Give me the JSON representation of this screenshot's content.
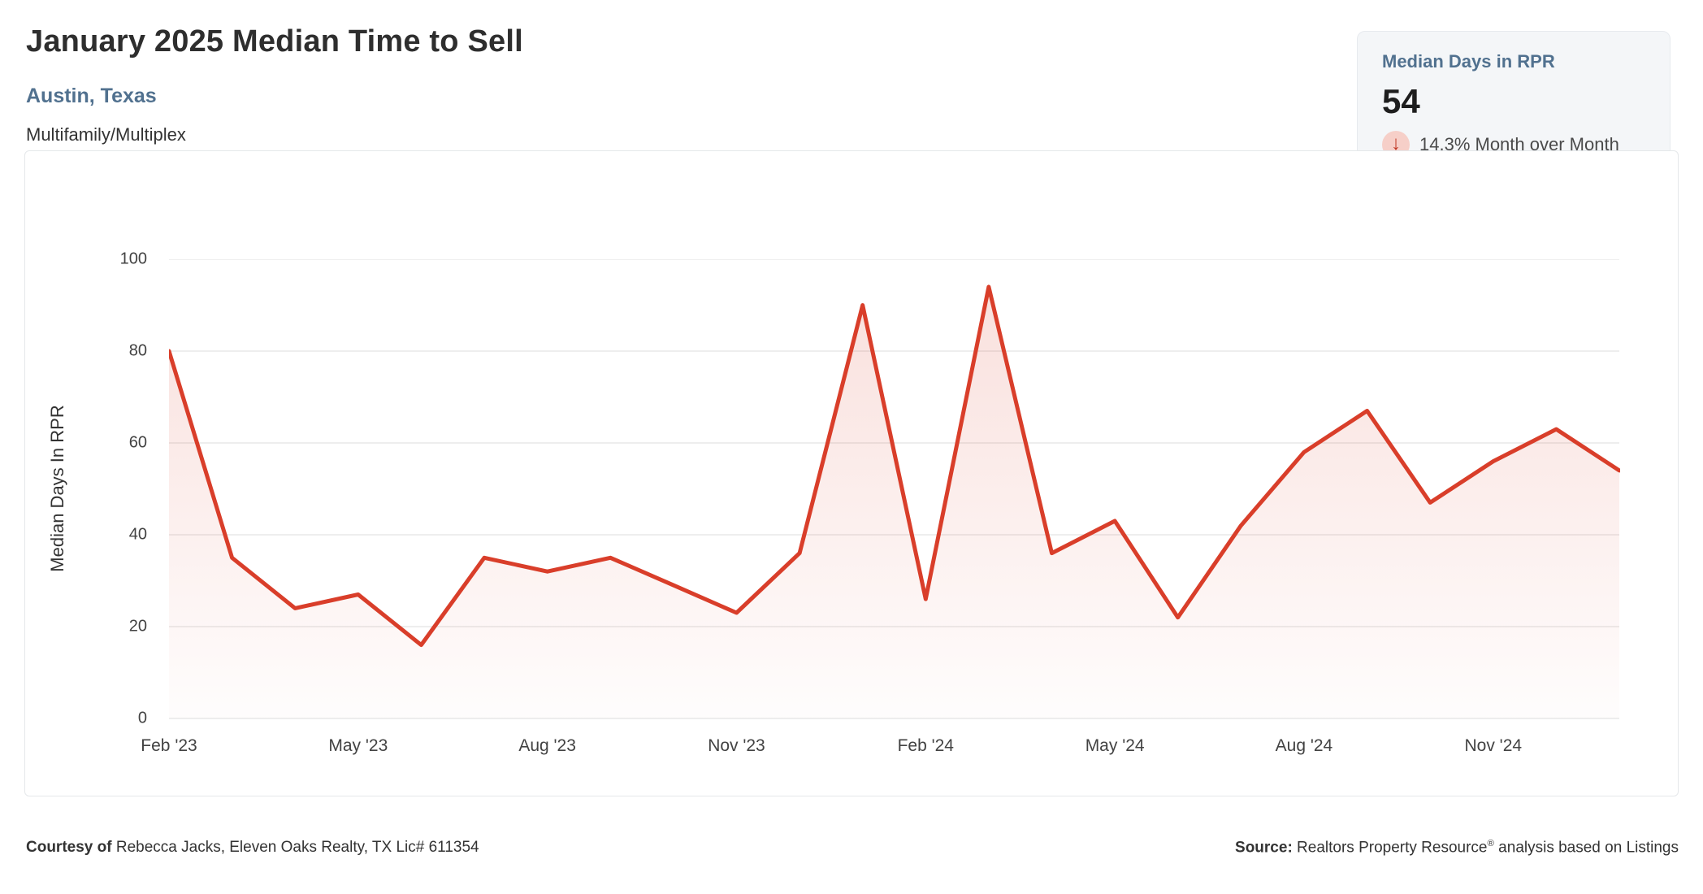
{
  "header": {
    "title": "January 2025 Median Time to Sell",
    "subtitle": "Austin, Texas",
    "property_type": "Multifamily/Multiplex"
  },
  "stat_card": {
    "label": "Median Days in RPR",
    "value": "54",
    "change_direction": "down",
    "arrow_icon": "↓",
    "change_text": "14.3% Month over Month"
  },
  "chart_data": {
    "type": "area",
    "title": "",
    "xlabel": "",
    "ylabel": "Median Days In RPR",
    "ylim": [
      0,
      100
    ],
    "yticks": [
      0,
      20,
      40,
      60,
      80,
      100
    ],
    "grid": true,
    "legend": "none",
    "x": [
      "Feb '23",
      "Mar '23",
      "Apr '23",
      "May '23",
      "Jun '23",
      "Jul '23",
      "Aug '23",
      "Sep '23",
      "Oct '23",
      "Nov '23",
      "Dec '23",
      "Jan '24",
      "Feb '24",
      "Mar '24",
      "Apr '24",
      "May '24",
      "Jun '24",
      "Jul '24",
      "Aug '24",
      "Sep '24",
      "Oct '24",
      "Nov '24",
      "Dec '24",
      "Jan '25"
    ],
    "xtick_every": 3,
    "xtick_labels": [
      "Feb '23",
      "May '23",
      "Aug '23",
      "Nov '23",
      "Feb '24",
      "May '24",
      "Aug '24",
      "Nov '24"
    ],
    "series": [
      {
        "name": "Median Days In RPR",
        "values": [
          80,
          35,
          24,
          27,
          16,
          35,
          32,
          35,
          29,
          23,
          36,
          90,
          26,
          94,
          36,
          43,
          22,
          42,
          58,
          67,
          47,
          56,
          63,
          54
        ]
      }
    ]
  },
  "colors": {
    "line": "#d93e2a",
    "area_top": "rgba(217,62,42,0.16)",
    "area_bottom": "rgba(217,62,42,0.01)",
    "grid": "#e8e8e8",
    "accent_blue": "#51718f",
    "arrow_red": "#c03522",
    "arrow_bg": "#f6cfc8"
  },
  "footer": {
    "courtesy_bold": "Courtesy of",
    "courtesy_text": " Rebecca Jacks, Eleven Oaks Realty, TX Lic# 611354",
    "source_bold": "Source:",
    "source_text_pre": " Realtors Property Resource",
    "source_reg_mark": "®",
    "source_text_post": " analysis based on Listings"
  }
}
